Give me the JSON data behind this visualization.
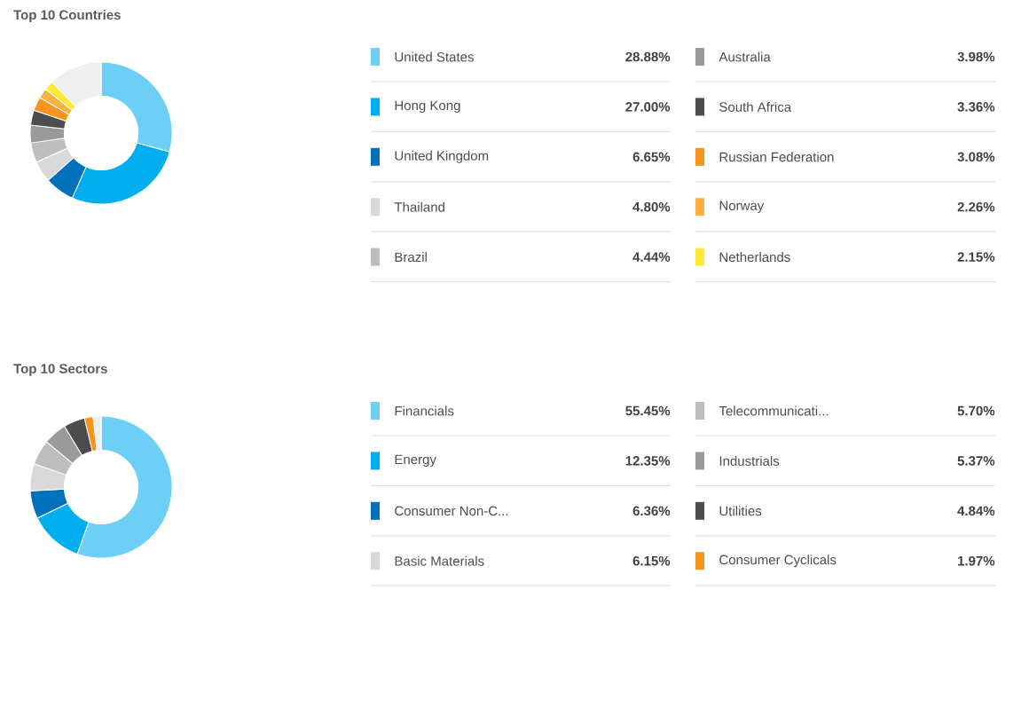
{
  "chart_data": [
    {
      "type": "donut",
      "title": "Top 10 Countries",
      "legend": "right",
      "categories": [
        "United States",
        "Hong Kong",
        "United Kingdom",
        "Thailand",
        "Brazil",
        "Australia",
        "South Africa",
        "Russian Federation",
        "Norway",
        "Netherlands",
        null
      ],
      "values": [
        28.88,
        27.0,
        6.65,
        4.8,
        4.44,
        3.98,
        3.36,
        3.08,
        2.26,
        2.15,
        12.01
      ],
      "value_labels": [
        "28.88%",
        "27.00%",
        "6.65%",
        "4.80%",
        "4.44%",
        "3.98%",
        "3.36%",
        "3.08%",
        "2.26%",
        "2.15%",
        null
      ],
      "colors": [
        "#6dcff6",
        "#00aeef",
        "#0072bc",
        "#d9d9d9",
        "#bdbdbd",
        "#9a9a9a",
        "#4d4d4d",
        "#f7941d",
        "#fbb040",
        "#ffe936",
        "#efefef"
      ]
    },
    {
      "type": "donut",
      "title": "Top 10 Sectors",
      "legend": "right",
      "categories": [
        "Financials",
        "Energy",
        "Consumer Non-C...",
        "Basic Materials",
        "Telecommunicati...",
        "Industrials",
        "Utilities",
        "Consumer Cyclicals",
        null
      ],
      "values": [
        55.45,
        12.35,
        6.36,
        6.15,
        5.7,
        5.37,
        4.84,
        1.97,
        1.81
      ],
      "value_labels": [
        "55.45%",
        "12.35%",
        "6.36%",
        "6.15%",
        "5.70%",
        "5.37%",
        "4.84%",
        "1.97%",
        null
      ],
      "colors": [
        "#6dcff6",
        "#00aeef",
        "#0072bc",
        "#d9d9d9",
        "#bdbdbd",
        "#9a9a9a",
        "#4d4d4d",
        "#f7941d",
        "#efefef"
      ]
    }
  ]
}
